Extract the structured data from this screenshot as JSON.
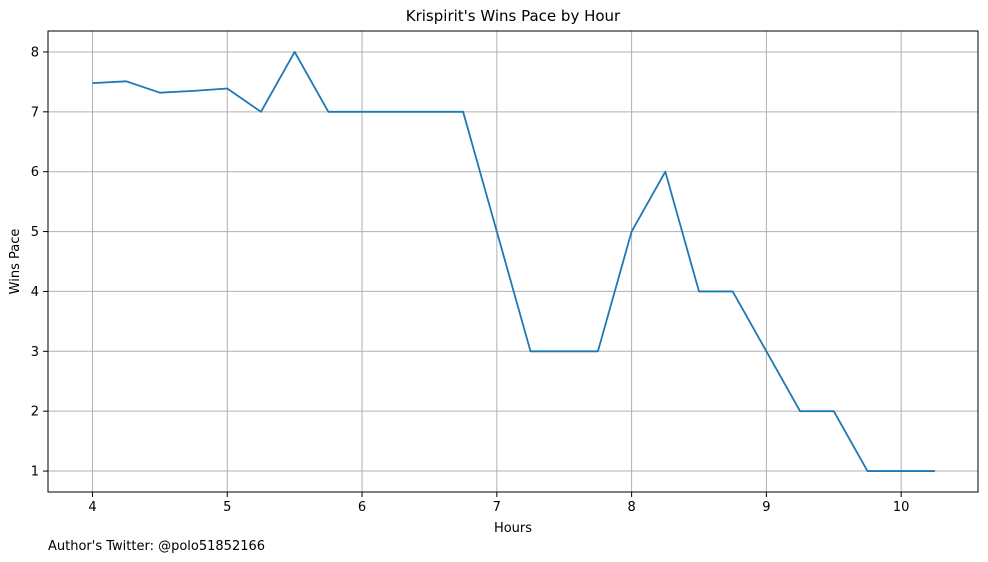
{
  "chart_data": {
    "type": "line",
    "title": "Krispirit's Wins Pace by Hour",
    "xlabel": "Hours",
    "ylabel": "Wins Pace",
    "xlim": [
      3.67,
      10.57
    ],
    "ylim": [
      0.65,
      8.35
    ],
    "grid": true,
    "x_ticks": [
      4,
      5,
      6,
      7,
      8,
      9,
      10
    ],
    "y_ticks": [
      1,
      2,
      3,
      4,
      5,
      6,
      7,
      8
    ],
    "line_color": "#1f77b4",
    "series": [
      {
        "x": [
          4.0,
          4.25,
          4.5,
          4.75,
          5.0,
          5.25,
          5.5,
          5.75,
          6.0,
          6.25,
          6.5,
          6.75,
          7.0,
          7.25,
          7.5,
          7.75,
          8.0,
          8.25,
          8.5,
          8.75,
          9.0,
          9.25,
          9.5,
          9.75,
          10.0,
          10.25
        ],
        "values": [
          7.48,
          7.51,
          7.32,
          7.35,
          7.39,
          7.0,
          8.0,
          7.0,
          7.0,
          7.0,
          7.0,
          7.0,
          5.0,
          3.0,
          3.0,
          3.0,
          5.0,
          6.0,
          4.0,
          4.0,
          3.0,
          2.0,
          2.0,
          1.0,
          1.0,
          1.0
        ]
      }
    ]
  },
  "footnote": "Author's Twitter: @polo51852166"
}
